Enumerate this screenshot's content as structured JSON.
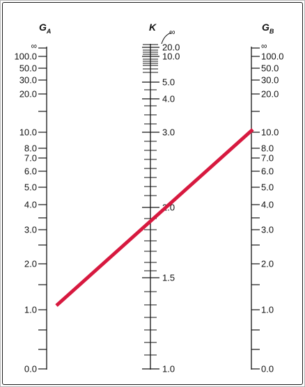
{
  "nomograph": {
    "scales": {
      "GA": {
        "title": "G",
        "subscript": "A",
        "labels": [
          "∞",
          "100.0",
          "50.0",
          "30.0",
          "20.0",
          "10.0",
          "8.0",
          "7.0",
          "6.0",
          "5.0",
          "4.0",
          "3.0",
          "2.0",
          "1.0",
          "0.0"
        ]
      },
      "K": {
        "title": "K",
        "infinity_label": "∞",
        "labels": [
          "20.0",
          "10.0",
          "5.0",
          "4.0",
          "3.0",
          "2.0",
          "1.5",
          "1.0"
        ]
      },
      "GB": {
        "title": "G",
        "subscript": "B",
        "labels": [
          "∞",
          "100.0",
          "50.0",
          "30.0",
          "20.0",
          "10.0",
          "8.0",
          "7.0",
          "6.0",
          "5.0",
          "4.0",
          "3.0",
          "2.0",
          "1.0",
          "0.0"
        ]
      }
    },
    "solution_line": {
      "GA": 1.0,
      "GB": 10.0,
      "K": 1.95,
      "color": "#d7193f"
    },
    "colors": {
      "ink": "#111111"
    }
  }
}
